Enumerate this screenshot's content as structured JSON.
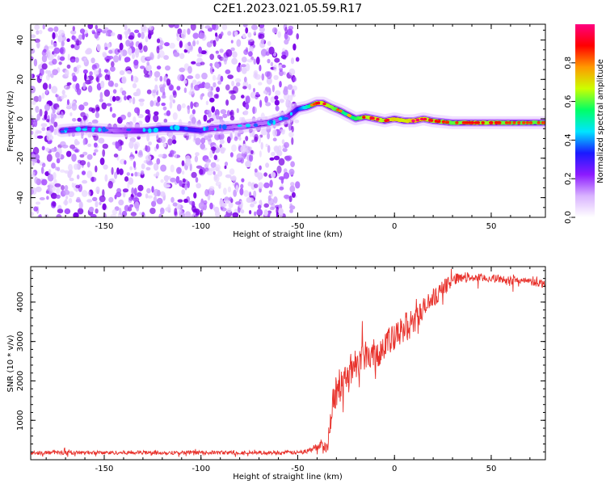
{
  "title": "C2E1.2023.021.05.59.R17",
  "chart_data": [
    {
      "type": "heatmap",
      "xlabel": "Height of straight line (km)",
      "ylabel": "Frequency (Hz)",
      "xlim": [
        -188,
        78
      ],
      "ylim": [
        -50,
        48
      ],
      "xticks": [
        -150,
        -100,
        -50,
        0,
        50
      ],
      "yticks": [
        -40,
        -20,
        0,
        20,
        40
      ],
      "colorbar": {
        "label": "Normalized spectral amplitude",
        "ticks": [
          0.0,
          0.2,
          0.4,
          0.6,
          0.8
        ],
        "range": [
          0,
          1
        ],
        "colors": [
          "#ffffff",
          "#d9b3ff",
          "#8c1aff",
          "#1a1aff",
          "#00e5ff",
          "#00ff66",
          "#ccff00",
          "#ff9900",
          "#ff0000",
          "#ff0080"
        ]
      },
      "noise_region_x": [
        -188,
        -50
      ],
      "ridge": {
        "x": [
          -172,
          -160,
          -145,
          -130,
          -120,
          -110,
          -100,
          -95,
          -80,
          -65,
          -55,
          -50,
          -45,
          -40,
          -37,
          -33,
          -28,
          -24,
          -20,
          -15,
          -10,
          -5,
          0,
          5,
          10,
          15,
          20,
          30,
          40,
          50,
          60,
          70,
          78
        ],
        "y": [
          -6,
          -5,
          -6,
          -6,
          -5,
          -5,
          -6,
          -5,
          -4,
          -2,
          1,
          5,
          6,
          8,
          8,
          6,
          4,
          2,
          0,
          1,
          0,
          -1,
          0,
          -1,
          -1,
          0,
          -1,
          -2,
          -2,
          -2,
          -2,
          -2,
          -2
        ],
        "peak_amplitude": [
          0.3,
          0.3,
          0.2,
          0.3,
          0.4,
          0.4,
          0.35,
          0.25,
          0.2,
          0.2,
          0.25,
          0.4,
          0.6,
          0.8,
          0.85,
          0.8,
          0.7,
          0.65,
          0.7,
          0.8,
          0.85,
          0.8,
          0.9,
          0.85,
          0.9,
          0.85,
          0.8,
          0.75,
          0.8,
          0.8,
          0.75,
          0.75,
          0.75
        ]
      }
    },
    {
      "type": "line",
      "xlabel": "Height of straight line (km)",
      "ylabel": "SNR (10 * v/v)",
      "xlim": [
        -188,
        78
      ],
      "ylim": [
        0,
        4900
      ],
      "xticks": [
        -150,
        -100,
        -50,
        0,
        50
      ],
      "yticks": [
        1000,
        2000,
        3000,
        4000
      ],
      "color": "#e8322c",
      "envelope": {
        "x": [
          -188,
          -50,
          -45,
          -40,
          -37,
          -35,
          -33,
          -31,
          -28,
          -25,
          -20,
          -15,
          -10,
          -5,
          0,
          5,
          10,
          15,
          20,
          25,
          30,
          35,
          40,
          50,
          60,
          70,
          78
        ],
        "y": [
          180,
          180,
          220,
          330,
          450,
          250,
          1050,
          1550,
          1850,
          2150,
          2450,
          2700,
          2650,
          2950,
          3050,
          3350,
          3500,
          3800,
          4100,
          4350,
          4560,
          4650,
          4620,
          4600,
          4560,
          4520,
          4460
        ],
        "noise": [
          50,
          50,
          60,
          90,
          130,
          150,
          300,
          380,
          400,
          420,
          420,
          400,
          420,
          400,
          380,
          380,
          350,
          320,
          280,
          200,
          150,
          130,
          110,
          100,
          100,
          100,
          100
        ]
      }
    }
  ]
}
